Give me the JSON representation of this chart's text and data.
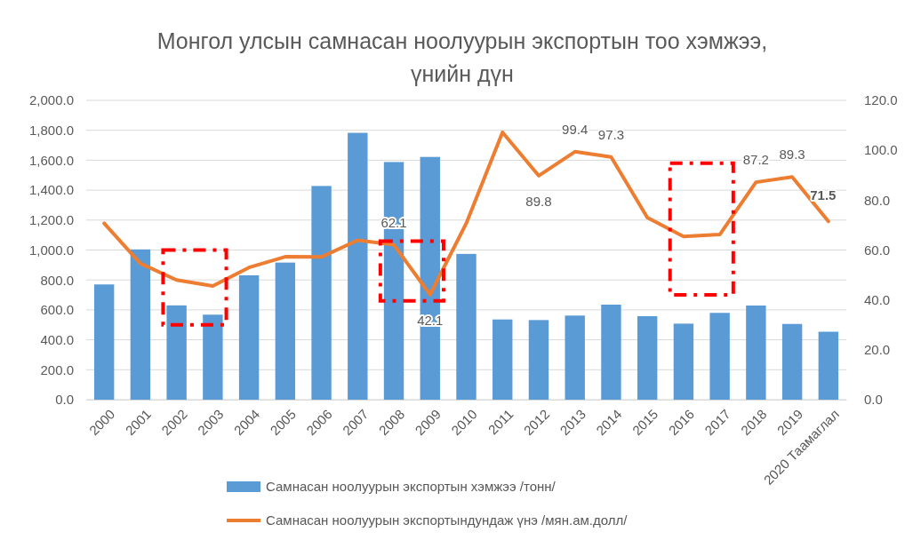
{
  "chart_data": {
    "type": "bar",
    "title": "Монгол улсын самнасан ноолуурын экспортын тоо хэмжээ,\nүнийн дүн",
    "categories": [
      "2000",
      "2001",
      "2002",
      "2003",
      "2004",
      "2005",
      "2006",
      "2007",
      "2008",
      "2009",
      "2010",
      "2011",
      "2012",
      "2013",
      "2014",
      "2015",
      "2016",
      "2017",
      "2018",
      "2019",
      "2020 Таамаглал"
    ],
    "series": [
      {
        "name": "Самнасан ноолуурын экспортын хэмжээ /тонн/",
        "color": "#5b9bd5",
        "values": [
          770,
          1004,
          630,
          568,
          831,
          916,
          1428,
          1783,
          1588,
          1622,
          974,
          536,
          532,
          562,
          635,
          558,
          508,
          580,
          629,
          506,
          454
        ]
      },
      {
        "name": "Самнасан ноолуурын экспортындундаж үнэ /мян.ам.долл/",
        "type": "line",
        "axis": "y2",
        "color": "#ed7d31",
        "values": [
          70.7,
          54.6,
          48.0,
          45.6,
          53.0,
          57.3,
          57.2,
          63.9,
          62.1,
          42.1,
          70.7,
          107.2,
          89.8,
          99.4,
          97.3,
          73.0,
          65.4,
          66.2,
          87.2,
          89.3,
          71.5
        ],
        "value_labels": [
          null,
          null,
          null,
          null,
          null,
          null,
          null,
          null,
          "62.1",
          "42.1",
          null,
          null,
          "89.8",
          "99.4",
          "97.3",
          null,
          null,
          null,
          "87.2",
          "89.3",
          "71.5"
        ]
      }
    ],
    "ylim": [
      0,
      2000
    ],
    "yticks": [
      {
        "value": 0,
        "label": "0.0"
      },
      {
        "value": 200,
        "label": "200.0"
      },
      {
        "value": 400,
        "label": "400.0"
      },
      {
        "value": 600,
        "label": "600.0"
      },
      {
        "value": 800,
        "label": "800.0"
      },
      {
        "value": 1000,
        "label": "1,000.0"
      },
      {
        "value": 1200,
        "label": "1,200.0"
      },
      {
        "value": 1400,
        "label": "1,400.0"
      },
      {
        "value": 1600,
        "label": "1,600.0"
      },
      {
        "value": 1800,
        "label": "1,800.0"
      },
      {
        "value": 2000,
        "label": "2,000.0"
      }
    ],
    "y2lim": [
      0,
      120
    ],
    "y2ticks": [
      {
        "value": 0,
        "label": "0.0"
      },
      {
        "value": 20,
        "label": "20.0"
      },
      {
        "value": 40,
        "label": "40.0"
      },
      {
        "value": 60,
        "label": "60.0"
      },
      {
        "value": 80,
        "label": "80.0"
      },
      {
        "value": 100,
        "label": "100.0"
      },
      {
        "value": 120,
        "label": "120.0"
      }
    ],
    "grid": "y",
    "legend": "bottom",
    "marker": "none",
    "line_style": "solid"
  }
}
